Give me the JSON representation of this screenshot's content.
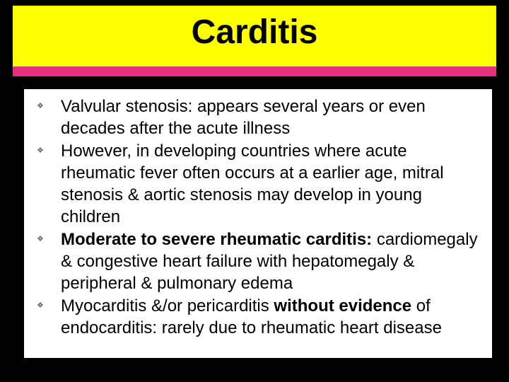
{
  "title": "Carditis",
  "colors": {
    "background": "#000000",
    "title_band": "#ffff00",
    "accent_band": "#e6307e",
    "content_bg": "#ffffff",
    "title_text": "#000000",
    "body_text": "#000000",
    "bullet_icon": "#666666"
  },
  "typography": {
    "title_fontsize_pt": 36,
    "body_fontsize_pt": 18,
    "font_family": "Comic Sans MS"
  },
  "bullets": [
    {
      "segments": [
        {
          "text": "Valvular stenosis: appears several years or even decades after the acute illness",
          "bold": false
        }
      ]
    },
    {
      "segments": [
        {
          "text": "However, in developing countries where acute rheumatic fever often occurs at a earlier age, mitral stenosis & aortic stenosis may develop in young children",
          "bold": false
        }
      ]
    },
    {
      "segments": [
        {
          "text": "Moderate to severe rheumatic carditis: ",
          "bold": true
        },
        {
          "text": "cardiomegaly & congestive heart failure with hepatomegaly & peripheral & pulmonary edema",
          "bold": false
        }
      ]
    },
    {
      "segments": [
        {
          "text": "Myocarditis &/or pericarditis ",
          "bold": false
        },
        {
          "text": "without evidence ",
          "bold": true
        },
        {
          "text": "of endocarditis: rarely due to rheumatic heart disease",
          "bold": false
        }
      ]
    }
  ]
}
